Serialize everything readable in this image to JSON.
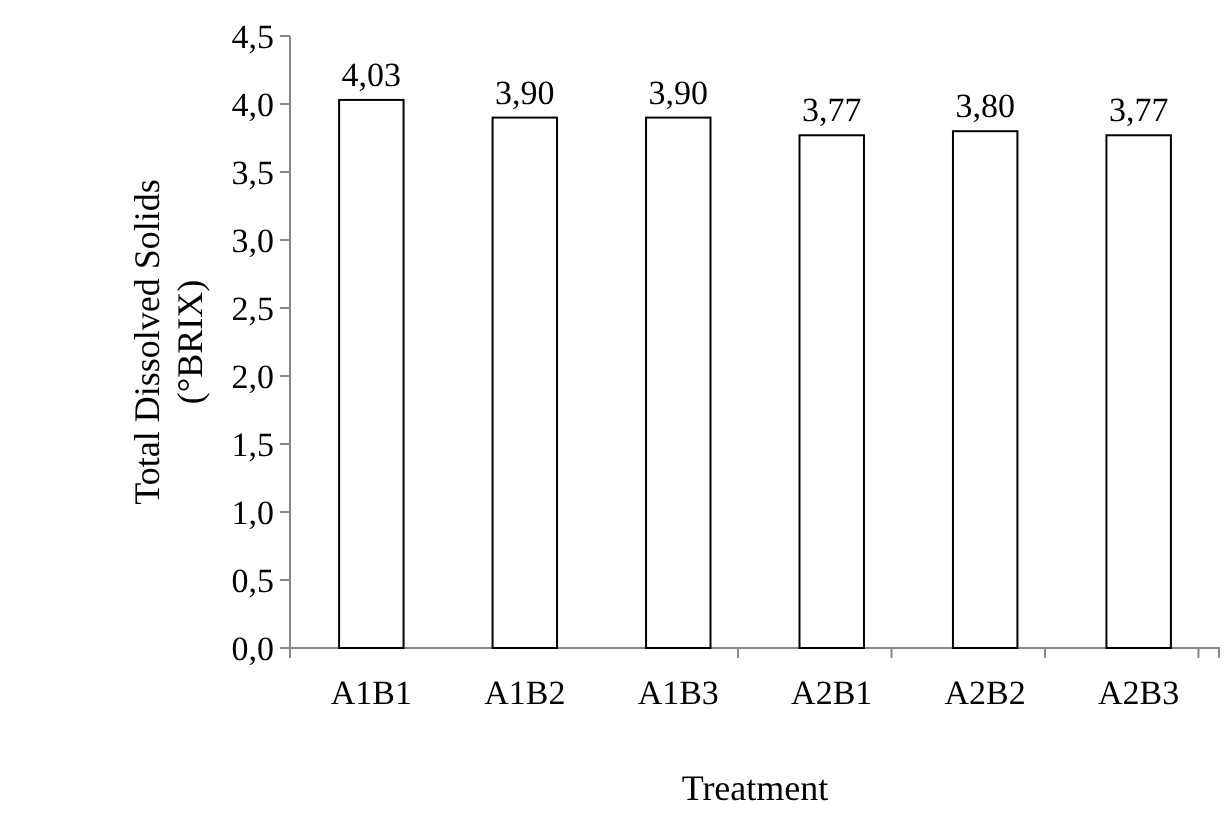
{
  "chart_data": {
    "type": "bar",
    "xlabel": "Treatment",
    "ylabel": "Total Dissolved Solids (°BRIX)",
    "categories": [
      "A1B1",
      "A1B2",
      "A1B3",
      "A2B1",
      "A2B2",
      "A2B3"
    ],
    "values": [
      4.03,
      3.9,
      3.9,
      3.77,
      3.8,
      3.77
    ],
    "value_labels": [
      "4,03",
      "3,90",
      "3,90",
      "3,77",
      "3,80",
      "3,77"
    ],
    "color": "#ffffff",
    "ylim": [
      0,
      4.5
    ],
    "yticks": [
      {
        "value": 0,
        "label": "0,0"
      },
      {
        "value": 0.5,
        "label": "0,5"
      },
      {
        "value": 1,
        "label": "1,0"
      },
      {
        "value": 1.5,
        "label": "1,5"
      },
      {
        "value": 2,
        "label": "2,0"
      },
      {
        "value": 2.5,
        "label": "2,5"
      },
      {
        "value": 3,
        "label": "3,0"
      },
      {
        "value": 3.5,
        "label": "3,5"
      },
      {
        "value": 4,
        "label": "4,0"
      },
      {
        "value": 4.5,
        "label": "4,5"
      }
    ],
    "grid": false
  }
}
